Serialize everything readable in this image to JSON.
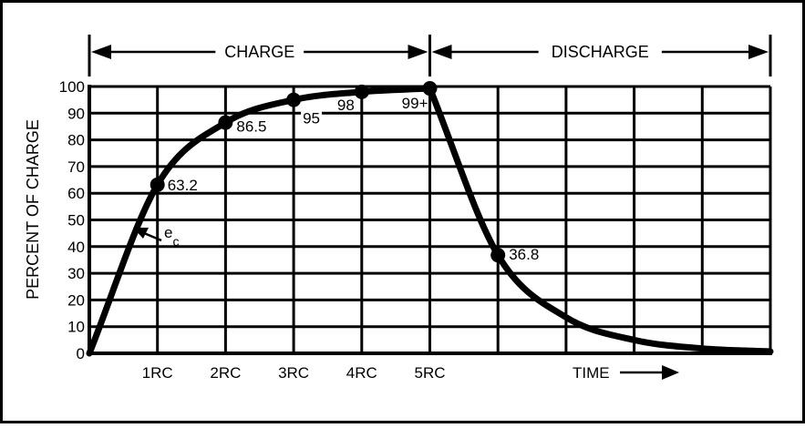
{
  "chart_data": {
    "type": "line",
    "ylabel": "PERCENT OF CHARGE",
    "xlabel": "TIME",
    "ylim": [
      0,
      100
    ],
    "xlim": [
      0,
      10
    ],
    "grid": true,
    "y_ticks": [
      "0",
      "10",
      "20",
      "30",
      "40",
      "50",
      "60",
      "70",
      "80",
      "90",
      "100"
    ],
    "x_ticks": [
      {
        "x": 1,
        "label": "1RC"
      },
      {
        "x": 2,
        "label": "2RC"
      },
      {
        "x": 3,
        "label": "3RC"
      },
      {
        "x": 4,
        "label": "4RC"
      },
      {
        "x": 5,
        "label": "5RC"
      }
    ],
    "regions": [
      {
        "label": "CHARGE",
        "from": 0,
        "to": 5
      },
      {
        "label": "DISCHARGE",
        "from": 5,
        "to": 10
      }
    ],
    "series": [
      {
        "points": [
          {
            "x": 0,
            "y": 0
          },
          {
            "x": 1,
            "y": 63.2
          },
          {
            "x": 2,
            "y": 86.5
          },
          {
            "x": 3,
            "y": 95
          },
          {
            "x": 4,
            "y": 98
          },
          {
            "x": 5,
            "y": 99.3
          },
          {
            "x": 6,
            "y": 36.8
          },
          {
            "x": 7,
            "y": 13.5
          },
          {
            "x": 8,
            "y": 5
          },
          {
            "x": 9,
            "y": 1.8
          },
          {
            "x": 10,
            "y": 0.7
          }
        ]
      }
    ],
    "marked_points": [
      {
        "x": 1,
        "y": 63.2,
        "label": "63.2"
      },
      {
        "x": 2,
        "y": 86.5,
        "label": "86.5"
      },
      {
        "x": 3,
        "y": 95,
        "label": "95"
      },
      {
        "x": 4,
        "y": 98,
        "label": "98"
      },
      {
        "x": 5,
        "y": 99.3,
        "label": "99+"
      },
      {
        "x": 6,
        "y": 36.8,
        "label": "36.8"
      }
    ],
    "curve_annotation": {
      "label": "e",
      "subscript": "c"
    }
  }
}
